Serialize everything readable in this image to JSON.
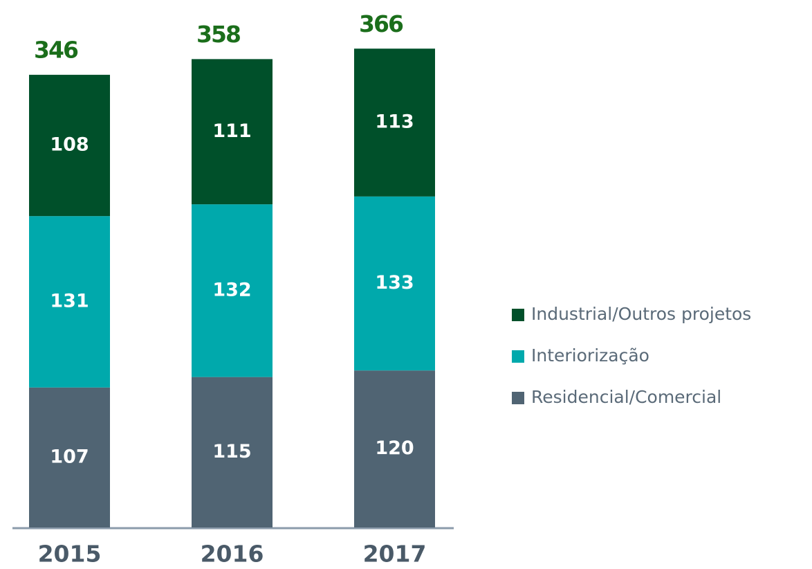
{
  "chart_data": {
    "type": "stacked_bar",
    "categories": [
      "2015",
      "2016",
      "2017"
    ],
    "series": [
      {
        "name": "Residencial/Comercial",
        "color": "#506473",
        "values": [
          107,
          115,
          120
        ]
      },
      {
        "name": "Interiorização",
        "color": "#00a9ac",
        "values": [
          131,
          132,
          133
        ]
      },
      {
        "name": "Industrial/Outros projetos",
        "color": "#00502a",
        "values": [
          108,
          111,
          113
        ]
      }
    ],
    "totals": [
      346,
      358,
      366
    ],
    "totals_color": "#1b6e1b"
  }
}
